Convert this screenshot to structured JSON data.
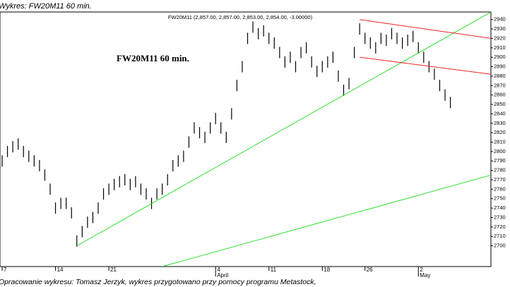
{
  "header": "Wykres: FW20M11 60 min.",
  "footer": "Opracowanie wykresu: Tomasz Jerzyk, wykres przygotowano przy pomocy programu Metastock,",
  "chart_data": {
    "type": "hilo",
    "title": "FW20M11 60 min.",
    "subtitle": "FW20M11 (2,857.00, 2,857.00, 2,853.00, 2,854.00, -3.00000)",
    "color": "#000000",
    "x": [
      0,
      0.5,
      1,
      1.5,
      2,
      2.5,
      3,
      3.5,
      4,
      4.5,
      5,
      5.5,
      6,
      6.5,
      7,
      7.5,
      8,
      8.5,
      9,
      9.5,
      10,
      10.5,
      11,
      11.5,
      12,
      12.5,
      13,
      13.5,
      14,
      14.5,
      15,
      15.5,
      16,
      16.5,
      17,
      17.5,
      18,
      18.5,
      19,
      19.5,
      20,
      20.5,
      21,
      21.5,
      22,
      22.5,
      23,
      23.5,
      24,
      24.5,
      25,
      25.5,
      26,
      26.5,
      27,
      27.5,
      28,
      28.5,
      29,
      29.5,
      30,
      30.5,
      31,
      31.5,
      32,
      32.5,
      33,
      33.5,
      34,
      34.5,
      35,
      35.5,
      36,
      36.5,
      37,
      37.5,
      38,
      38.5,
      39,
      39.5,
      40,
      40.5,
      41,
      41.5,
      42
    ],
    "high": [
      2796,
      2806,
      2811,
      2814,
      2806,
      2801,
      2796,
      2791,
      2781,
      2766,
      2746,
      2751,
      2751,
      2741,
      2711,
      2721,
      2731,
      2736,
      2746,
      2761,
      2766,
      2771,
      2774,
      2776,
      2771,
      2774,
      2766,
      2761,
      2751,
      2761,
      2766,
      2776,
      2791,
      2796,
      2801,
      2816,
      2831,
      2826,
      2821,
      2831,
      2841,
      2831,
      2821,
      2846,
      2876,
      2896,
      2926,
      2938,
      2931,
      2934,
      2926,
      2921,
      2911,
      2901,
      2906,
      2896,
      2911,
      2916,
      2901,
      2891,
      2896,
      2901,
      2906,
      2886,
      2871,
      2878,
      2911,
      2936,
      2926,
      2921,
      2916,
      2926,
      2924,
      2931,
      2926,
      2921,
      2924,
      2928,
      2916,
      2906,
      2896,
      2888,
      2876,
      2866,
      2858
    ],
    "low": [
      2784,
      2794,
      2799,
      2802,
      2794,
      2789,
      2784,
      2779,
      2769,
      2754,
      2734,
      2739,
      2739,
      2729,
      2699,
      2709,
      2719,
      2724,
      2734,
      2749,
      2754,
      2759,
      2762,
      2764,
      2759,
      2762,
      2754,
      2749,
      2739,
      2749,
      2754,
      2764,
      2779,
      2784,
      2789,
      2804,
      2819,
      2814,
      2809,
      2819,
      2829,
      2819,
      2809,
      2834,
      2864,
      2884,
      2914,
      2926,
      2919,
      2922,
      2914,
      2909,
      2899,
      2889,
      2894,
      2884,
      2899,
      2904,
      2889,
      2879,
      2884,
      2889,
      2894,
      2874,
      2859,
      2866,
      2899,
      2924,
      2914,
      2909,
      2904,
      2914,
      2912,
      2919,
      2914,
      2909,
      2912,
      2916,
      2904,
      2894,
      2884,
      2876,
      2864,
      2854,
      2846
    ],
    "xlim": [
      -0.2,
      45.8
    ],
    "ylim": [
      2678,
      2948
    ],
    "xticks": [
      {
        "value": 0,
        "label": "7"
      },
      {
        "value": 5,
        "label": "14"
      },
      {
        "value": 10,
        "label": "21"
      },
      {
        "value": 20,
        "label": "4"
      },
      {
        "value": 25,
        "label": "11"
      },
      {
        "value": 30,
        "label": "18"
      },
      {
        "value": 34,
        "label": "26"
      },
      {
        "value": 39,
        "label": "2"
      }
    ],
    "month_ticks": [
      {
        "value": 20,
        "label": "April"
      },
      {
        "value": 39,
        "label": "May"
      }
    ],
    "yticks": [
      2700,
      2710,
      2720,
      2730,
      2740,
      2750,
      2760,
      2770,
      2780,
      2790,
      2800,
      2810,
      2820,
      2830,
      2840,
      2850,
      2860,
      2870,
      2880,
      2890,
      2900,
      2910,
      2920,
      2930,
      2940
    ],
    "lines": [
      {
        "color": "#33dd33",
        "x": [
          7,
          45.8
        ],
        "y": [
          2700,
          2948
        ]
      },
      {
        "color": "#33dd33",
        "x": [
          15,
          45.8
        ],
        "y": [
          2678,
          2775
        ]
      },
      {
        "color": "#ee2222",
        "x": [
          33.5,
          45.8
        ],
        "y": [
          2940,
          2920
        ]
      },
      {
        "color": "#ee2222",
        "x": [
          33.5,
          45.8
        ],
        "y": [
          2900,
          2882
        ]
      }
    ]
  }
}
